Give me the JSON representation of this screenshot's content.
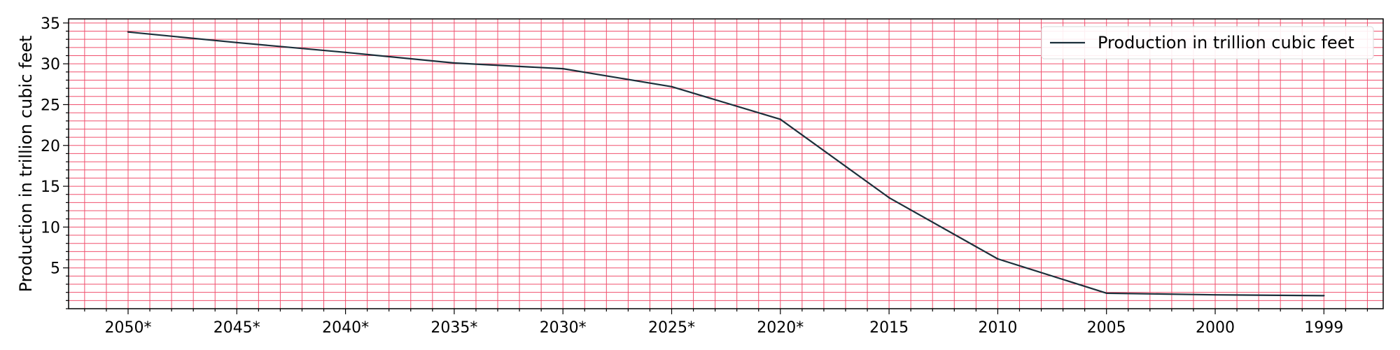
{
  "chart_data": {
    "type": "line",
    "categories": [
      "2050*",
      "2045*",
      "2040*",
      "2035*",
      "2030*",
      "2025*",
      "2020*",
      "2015",
      "2010",
      "2005",
      "2000",
      "1999"
    ],
    "series": [
      {
        "name": "Production in trillion cubic feet",
        "values": [
          33.9,
          32.6,
          31.4,
          30.1,
          29.4,
          27.2,
          23.2,
          13.6,
          6.1,
          1.9,
          1.7,
          1.6
        ],
        "color": "#1b2f3a"
      }
    ],
    "xlabel": "",
    "ylabel": "Production in trillion cubic feet",
    "ylim": [
      0,
      35.5
    ],
    "yticks": [
      5,
      10,
      15,
      20,
      25,
      30,
      35
    ],
    "grid": true,
    "grid_color": "#f0506e",
    "minor_grid": true,
    "legend_position": "top-right"
  }
}
